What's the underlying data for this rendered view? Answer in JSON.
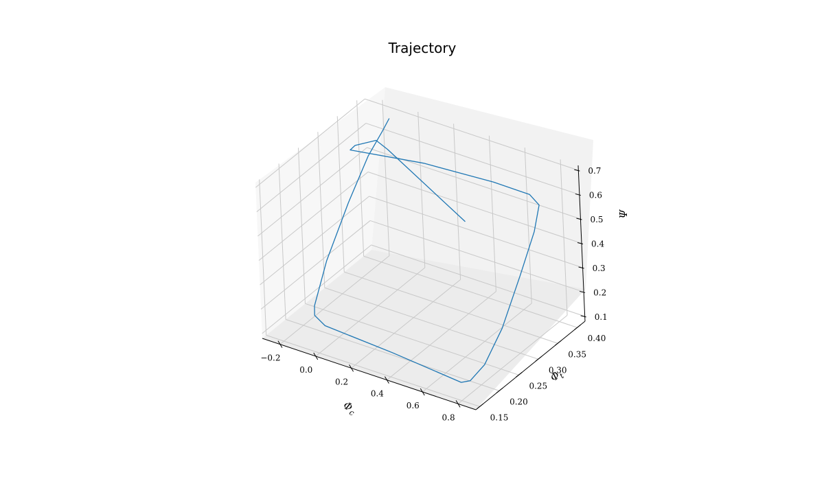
{
  "chart_data": {
    "type": "line",
    "projection": "3d",
    "title": "Trajectory",
    "xlabel": "Φc",
    "ylabel": "Φt",
    "zlabel": "Ψ",
    "xlim": [
      -0.3,
      0.9
    ],
    "ylim": [
      0.14,
      0.42
    ],
    "zlim": [
      0.08,
      0.72
    ],
    "xticks": [
      -0.2,
      0.0,
      0.2,
      0.4,
      0.6,
      0.8
    ],
    "xtick_labels": [
      "−0.2",
      "0.0",
      "0.2",
      "0.4",
      "0.6",
      "0.8"
    ],
    "yticks": [
      0.15,
      0.2,
      0.25,
      0.3,
      0.35,
      0.4
    ],
    "ytick_labels": [
      "0.15",
      "0.20",
      "0.25",
      "0.30",
      "0.35",
      "0.40"
    ],
    "zticks": [
      0.1,
      0.2,
      0.3,
      0.4,
      0.5,
      0.6,
      0.7
    ],
    "ztick_labels": [
      "0.1",
      "0.2",
      "0.3",
      "0.4",
      "0.5",
      "0.6",
      "0.7"
    ],
    "grid": true,
    "series": [
      {
        "color": "#1f77b4",
        "points": [
          [
            0.38,
            0.36,
            0.44
          ],
          [
            -0.16,
            0.41,
            0.54
          ],
          [
            -0.2,
            0.4,
            0.58
          ],
          [
            -0.16,
            0.33,
            0.66
          ],
          [
            -0.12,
            0.3,
            0.69
          ],
          [
            0.25,
            0.32,
            0.7
          ],
          [
            0.62,
            0.33,
            0.7
          ],
          [
            0.8,
            0.34,
            0.68
          ],
          [
            0.84,
            0.345,
            0.64
          ],
          [
            0.84,
            0.33,
            0.55
          ],
          [
            0.84,
            0.29,
            0.42
          ],
          [
            0.84,
            0.24,
            0.27
          ],
          [
            0.8,
            0.21,
            0.15
          ],
          [
            0.76,
            0.19,
            0.1
          ],
          [
            0.72,
            0.185,
            0.09
          ],
          [
            0.3,
            0.2,
            0.09
          ],
          [
            -0.1,
            0.21,
            0.09
          ],
          [
            -0.18,
            0.22,
            0.1
          ],
          [
            -0.19,
            0.225,
            0.13
          ],
          [
            -0.19,
            0.26,
            0.27
          ],
          [
            -0.19,
            0.32,
            0.43
          ],
          [
            -0.18,
            0.37,
            0.56
          ],
          [
            -0.16,
            0.4,
            0.63
          ],
          [
            -0.12,
            0.4,
            0.69
          ]
        ]
      }
    ]
  }
}
